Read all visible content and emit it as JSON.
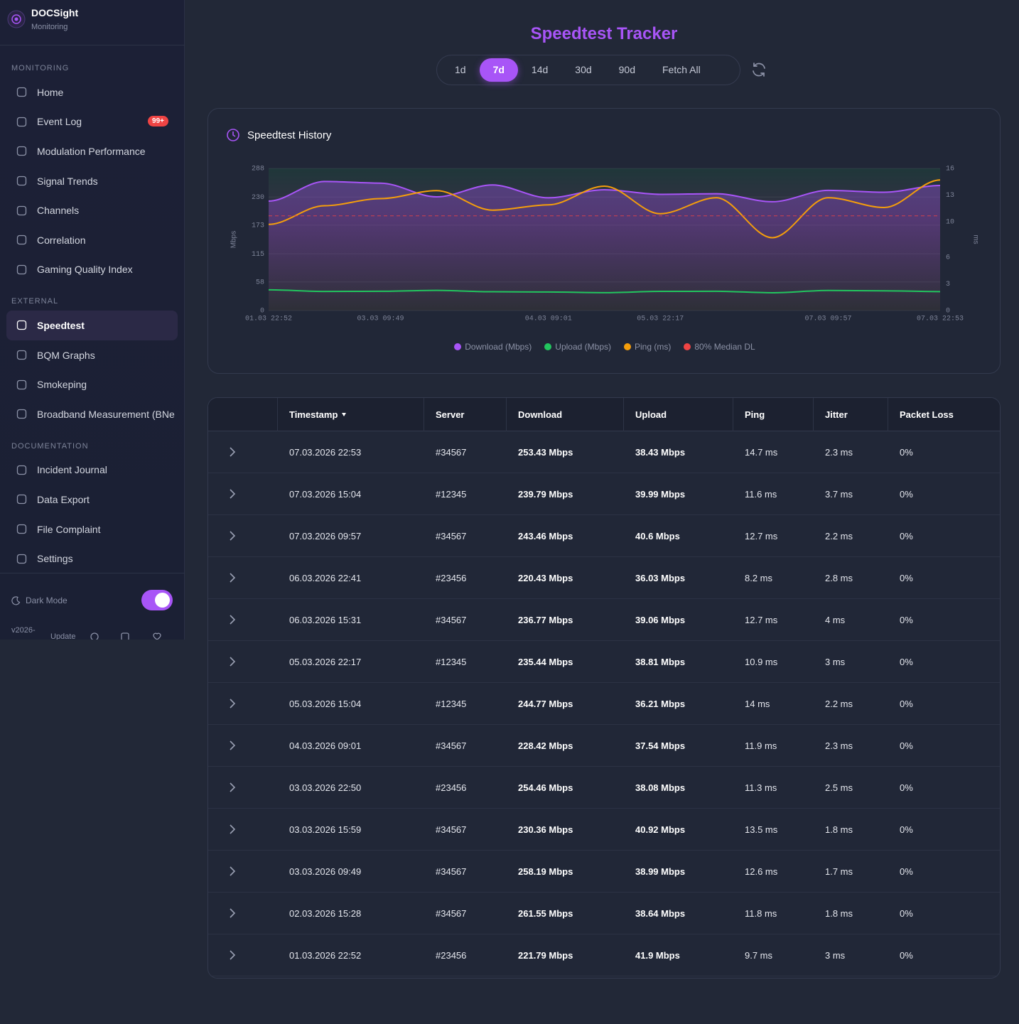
{
  "sidebar": {
    "brand": "DOCSight",
    "subtitle": "Monitoring",
    "sections": [
      {
        "title": "MONITORING",
        "items": [
          {
            "label": "Home"
          },
          {
            "label": "Event Log",
            "badge": "99+"
          },
          {
            "label": "Modulation Performance"
          },
          {
            "label": "Signal Trends"
          },
          {
            "label": "Channels"
          },
          {
            "label": "Correlation"
          },
          {
            "label": "Gaming Quality Index"
          }
        ]
      },
      {
        "title": "EXTERNAL",
        "items": [
          {
            "label": "Speedtest"
          },
          {
            "label": "BQM Graphs"
          },
          {
            "label": "Smokeping"
          },
          {
            "label": "Broadband Measurement (BNe"
          }
        ]
      },
      {
        "title": "DOCUMENTATION",
        "items": [
          {
            "label": "Incident Journal"
          },
          {
            "label": "Data Export"
          },
          {
            "label": "File Complaint"
          },
          {
            "label": "Settings"
          }
        ]
      }
    ],
    "active_section": 1,
    "active_item": 0,
    "dark_mode": {
      "label": "Dark Mode",
      "on": true
    },
    "version": "v2026-",
    "update": "Update"
  },
  "header": {
    "title": "Speedtest Tracker",
    "ranges": [
      "1d",
      "7d",
      "14d",
      "30d",
      "90d",
      "Fetch All"
    ],
    "active_range": 1
  },
  "chart_data": {
    "type": "line",
    "title": "Speedtest History",
    "y_label": "Mbps",
    "y2_label": "ms",
    "categories": [
      "01.03 22:52",
      null,
      "03.03 09:49",
      null,
      null,
      "04.03 09:01",
      null,
      "05.03 22:17",
      null,
      null,
      "07.03 09:57",
      null,
      "07.03 22:53"
    ],
    "series": [
      {
        "name": "Download (Mbps)",
        "color": "#a855f7",
        "area": true,
        "values": [
          221.79,
          261.55,
          258.19,
          230.36,
          254.46,
          228.42,
          244.77,
          235.44,
          236.77,
          220.43,
          243.46,
          239.79,
          253.43
        ]
      },
      {
        "name": "Upload (Mbps)",
        "color": "#22c55e",
        "values": [
          41.9,
          38.64,
          38.99,
          40.92,
          38.08,
          37.54,
          36.21,
          38.81,
          39.06,
          36.03,
          40.6,
          39.99,
          38.43
        ]
      },
      {
        "name": "Ping (ms)",
        "color": "#f59e0b",
        "axis": "y2",
        "values": [
          9.7,
          11.8,
          12.6,
          13.5,
          11.3,
          11.9,
          14,
          10.9,
          12.7,
          8.2,
          12.7,
          11.6,
          14.7
        ]
      }
    ],
    "reference_line": {
      "name": "80% Median DL",
      "color": "#ef4444",
      "value": 192
    },
    "ylim": [
      0,
      288
    ],
    "yticks": [
      0,
      58,
      115,
      173,
      230,
      288
    ],
    "y2lim": [
      0,
      16
    ],
    "y2ticks": [
      0,
      3,
      6,
      10,
      13,
      16
    ],
    "grid": true
  },
  "table": {
    "columns": [
      "Timestamp",
      "Server",
      "Download",
      "Upload",
      "Ping",
      "Jitter",
      "Packet Loss"
    ],
    "sort_column": 0,
    "rows": [
      [
        "07.03.2026 22:53",
        "#34567",
        "253.43 Mbps",
        "38.43 Mbps",
        "14.7 ms",
        "2.3 ms",
        "0%"
      ],
      [
        "07.03.2026 15:04",
        "#12345",
        "239.79 Mbps",
        "39.99 Mbps",
        "11.6 ms",
        "3.7 ms",
        "0%"
      ],
      [
        "07.03.2026 09:57",
        "#34567",
        "243.46 Mbps",
        "40.6 Mbps",
        "12.7 ms",
        "2.2 ms",
        "0%"
      ],
      [
        "06.03.2026 22:41",
        "#23456",
        "220.43 Mbps",
        "36.03 Mbps",
        "8.2 ms",
        "2.8 ms",
        "0%"
      ],
      [
        "06.03.2026 15:31",
        "#34567",
        "236.77 Mbps",
        "39.06 Mbps",
        "12.7 ms",
        "4 ms",
        "0%"
      ],
      [
        "05.03.2026 22:17",
        "#12345",
        "235.44 Mbps",
        "38.81 Mbps",
        "10.9 ms",
        "3 ms",
        "0%"
      ],
      [
        "05.03.2026 15:04",
        "#12345",
        "244.77 Mbps",
        "36.21 Mbps",
        "14 ms",
        "2.2 ms",
        "0%"
      ],
      [
        "04.03.2026 09:01",
        "#34567",
        "228.42 Mbps",
        "37.54 Mbps",
        "11.9 ms",
        "2.3 ms",
        "0%"
      ],
      [
        "03.03.2026 22:50",
        "#23456",
        "254.46 Mbps",
        "38.08 Mbps",
        "11.3 ms",
        "2.5 ms",
        "0%"
      ],
      [
        "03.03.2026 15:59",
        "#34567",
        "230.36 Mbps",
        "40.92 Mbps",
        "13.5 ms",
        "1.8 ms",
        "0%"
      ],
      [
        "03.03.2026 09:49",
        "#34567",
        "258.19 Mbps",
        "38.99 Mbps",
        "12.6 ms",
        "1.7 ms",
        "0%"
      ],
      [
        "02.03.2026 15:28",
        "#34567",
        "261.55 Mbps",
        "38.64 Mbps",
        "11.8 ms",
        "1.8 ms",
        "0%"
      ],
      [
        "01.03.2026 22:52",
        "#23456",
        "221.79 Mbps",
        "41.9 Mbps",
        "9.7 ms",
        "3 ms",
        "0%"
      ]
    ]
  }
}
